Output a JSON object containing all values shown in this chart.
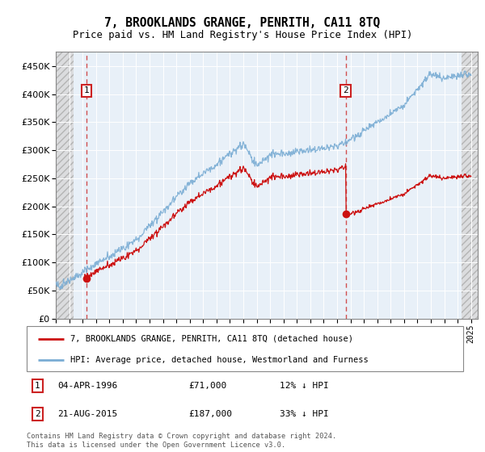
{
  "title": "7, BROOKLANDS GRANGE, PENRITH, CA11 8TQ",
  "subtitle": "Price paid vs. HM Land Registry's House Price Index (HPI)",
  "sale1_year": 1996.29,
  "sale1_price": 71000,
  "sale1_label": "04-APR-1996",
  "sale1_hpi_pct": "12% ↓ HPI",
  "sale2_year": 2015.64,
  "sale2_price": 187000,
  "sale2_label": "21-AUG-2015",
  "sale2_hpi_pct": "33% ↓ HPI",
  "legend_line1": "7, BROOKLANDS GRANGE, PENRITH, CA11 8TQ (detached house)",
  "legend_line2": "HPI: Average price, detached house, Westmorland and Furness",
  "footnote": "Contains HM Land Registry data © Crown copyright and database right 2024.\nThis data is licensed under the Open Government Licence v3.0.",
  "hpi_color": "#7aadd4",
  "price_color": "#cc1111",
  "bg_plot_color": "#e8f0f8",
  "ylim": [
    0,
    475000
  ],
  "yticks": [
    0,
    50000,
    100000,
    150000,
    200000,
    250000,
    300000,
    350000,
    400000,
    450000
  ],
  "xlim_start": 1994.0,
  "xlim_end": 2025.5,
  "hatch_end": 1995.3,
  "hatch_start2": 2024.3,
  "n_points": 756
}
